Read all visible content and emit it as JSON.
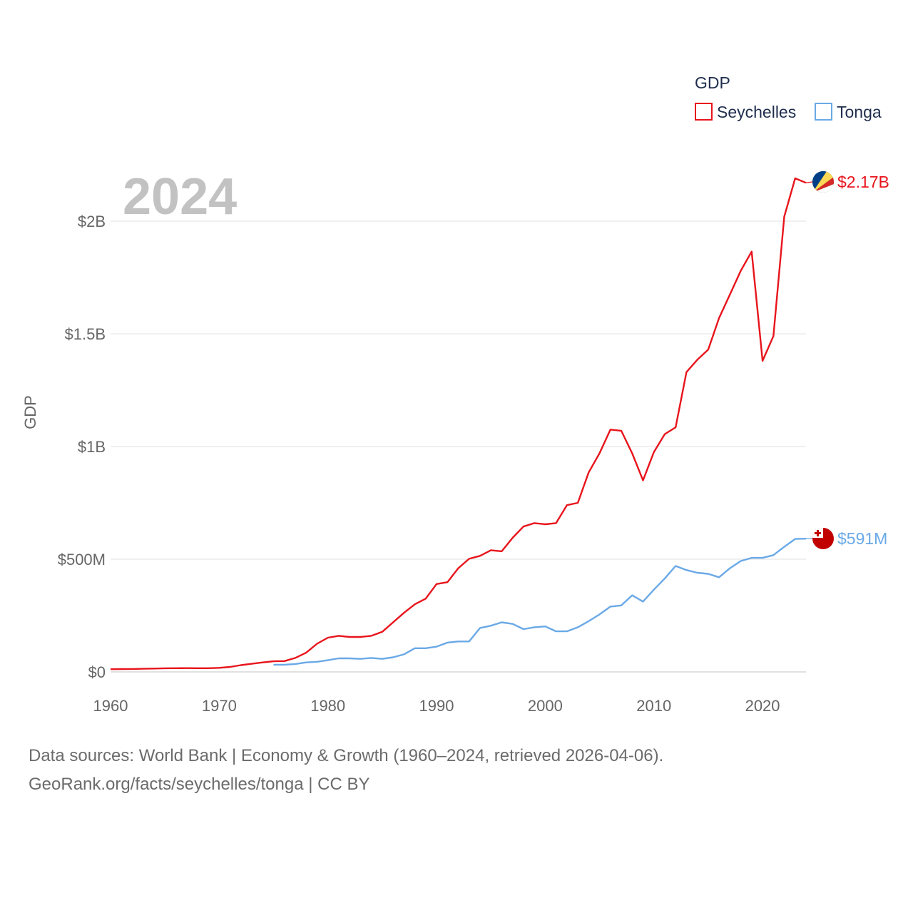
{
  "chart_data": {
    "type": "line",
    "title": "GDP",
    "current_year": "2024",
    "ylabel": "GDP",
    "xlabel": "",
    "xlim": [
      1960,
      2024
    ],
    "ylim": [
      0,
      2000000000
    ],
    "x_ticks": [
      1960,
      1970,
      1980,
      1990,
      2000,
      2010,
      2020
    ],
    "x_tick_labels": [
      "1960",
      "1970",
      "1980",
      "1990",
      "2000",
      "2010",
      "2020"
    ],
    "y_ticks": [
      0,
      500000000,
      1000000000,
      1500000000,
      2000000000
    ],
    "y_tick_labels": [
      "$0",
      "$500M",
      "$1B",
      "$1.5B",
      "$2B"
    ],
    "grid": true,
    "legend_placement": "top-right",
    "series": [
      {
        "name": "Seychelles",
        "color": "#e8141c",
        "end_label": "$2.17B",
        "flag_icon": "seychelles-flag-icon",
        "x": [
          1960,
          1961,
          1962,
          1963,
          1964,
          1965,
          1966,
          1967,
          1968,
          1969,
          1970,
          1971,
          1972,
          1973,
          1974,
          1975,
          1976,
          1977,
          1978,
          1979,
          1980,
          1981,
          1982,
          1983,
          1984,
          1985,
          1986,
          1987,
          1988,
          1989,
          1990,
          1991,
          1992,
          1993,
          1994,
          1995,
          1996,
          1997,
          1998,
          1999,
          2000,
          2001,
          2002,
          2003,
          2004,
          2005,
          2006,
          2007,
          2008,
          2009,
          2010,
          2011,
          2012,
          2013,
          2014,
          2015,
          2016,
          2017,
          2018,
          2019,
          2020,
          2021,
          2022,
          2023,
          2024
        ],
        "values": [
          12000000,
          12500000,
          13000000,
          14000000,
          15000000,
          16000000,
          16500000,
          16800000,
          16500000,
          16500000,
          18000000,
          22000000,
          30000000,
          36000000,
          42000000,
          47000000,
          48000000,
          62000000,
          85000000,
          125000000,
          152000000,
          160000000,
          155000000,
          155000000,
          160000000,
          178000000,
          220000000,
          262000000,
          300000000,
          325000000,
          390000000,
          398000000,
          460000000,
          502000000,
          515000000,
          540000000,
          535000000,
          595000000,
          645000000,
          660000000,
          655000000,
          660000000,
          740000000,
          750000000,
          885000000,
          970000000,
          1075000000,
          1070000000,
          970000000,
          850000000,
          975000000,
          1055000000,
          1085000000,
          1330000000,
          1385000000,
          1430000000,
          1570000000,
          1675000000,
          1780000000,
          1865000000,
          1380000000,
          1490000000,
          2020000000,
          2190000000,
          2170000000
        ]
      },
      {
        "name": "Tonga",
        "color": "#6aa9e6",
        "end_label": "$591M",
        "flag_icon": "tonga-flag-icon",
        "x": [
          1975,
          1976,
          1977,
          1978,
          1979,
          1980,
          1981,
          1982,
          1983,
          1984,
          1985,
          1986,
          1987,
          1988,
          1989,
          1990,
          1991,
          1992,
          1993,
          1994,
          1995,
          1996,
          1997,
          1998,
          1999,
          2000,
          2001,
          2002,
          2003,
          2004,
          2005,
          2006,
          2007,
          2008,
          2009,
          2010,
          2011,
          2012,
          2013,
          2014,
          2015,
          2016,
          2017,
          2018,
          2019,
          2020,
          2021,
          2022,
          2023,
          2024
        ],
        "values": [
          32000000,
          32000000,
          35000000,
          42000000,
          45000000,
          52000000,
          60000000,
          60000000,
          58000000,
          62000000,
          58000000,
          65000000,
          78000000,
          105000000,
          105000000,
          112000000,
          130000000,
          135000000,
          135000000,
          195000000,
          205000000,
          220000000,
          213000000,
          190000000,
          198000000,
          202000000,
          180000000,
          180000000,
          198000000,
          225000000,
          255000000,
          290000000,
          295000000,
          340000000,
          312000000,
          365000000,
          415000000,
          470000000,
          452000000,
          440000000,
          435000000,
          420000000,
          460000000,
          492000000,
          506000000,
          506000000,
          518000000,
          555000000,
          590000000,
          591000000
        ]
      }
    ]
  },
  "footer": {
    "line1": "Data sources: World Bank | Economy & Growth (1960–2024, retrieved 2026-04-06).",
    "line2": "GeoRank.org/facts/seychelles/tonga | CC BY"
  }
}
